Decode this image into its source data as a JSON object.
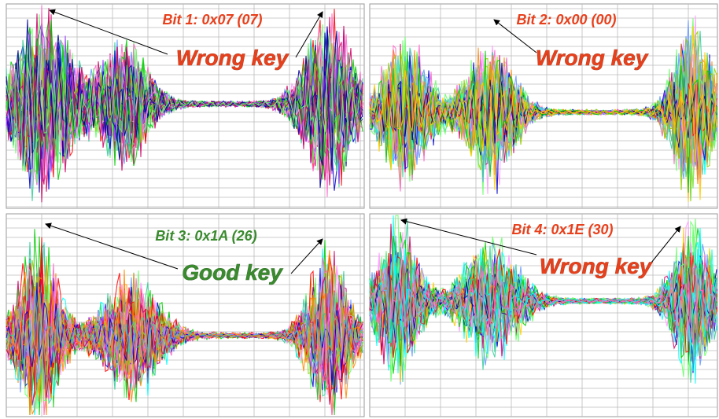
{
  "panels": [
    {
      "title": "Bit 1: 0x07 (07)",
      "label": "Wrong key",
      "color": "#e8401c"
    },
    {
      "title": "Bit 2: 0x00 (00)",
      "label": "Wrong key",
      "color": "#e8401c"
    },
    {
      "title": "Bit 3: 0x1A (26)",
      "label": "Good key",
      "color": "#3a8a2e"
    },
    {
      "title": "Bit 4: 0x1E (30)",
      "label": "Wrong key",
      "color": "#e8401c"
    }
  ]
}
